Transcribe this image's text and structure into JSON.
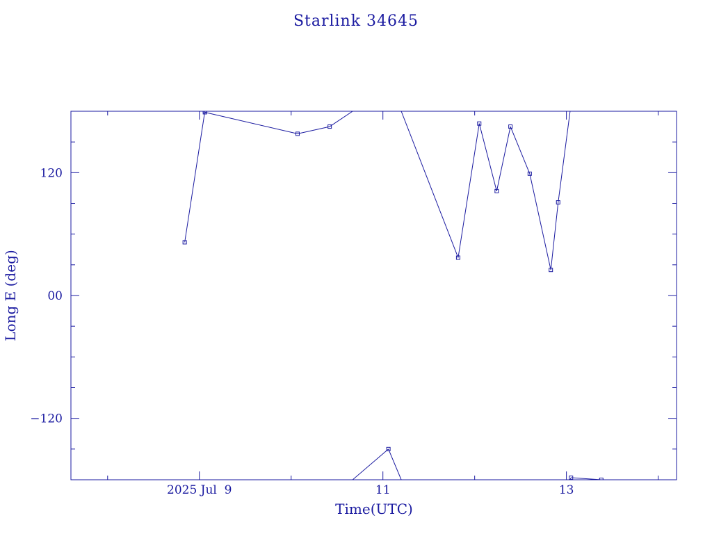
{
  "chart_data": {
    "type": "line",
    "title": "Starlink 34645",
    "xlabel": "Time(UTC)",
    "ylabel": "Long E (deg)",
    "xlim": [
      7.6,
      14.2
    ],
    "ylim": [
      -180,
      180
    ],
    "x_ticks": [
      {
        "value": 9,
        "label": "2025 Jul  9"
      },
      {
        "value": 11,
        "label": "11"
      },
      {
        "value": 13,
        "label": "13"
      }
    ],
    "y_ticks": [
      {
        "value": 120,
        "label": "120"
      },
      {
        "value": 0,
        "label": "00"
      },
      {
        "value": -120,
        "label": "-120"
      }
    ],
    "series": [
      {
        "points": [
          {
            "x": 8.84,
            "y": 52
          },
          {
            "x": 9.06,
            "y": 180
          },
          {
            "x": 9.06,
            "y": 179,
            "marker": true
          },
          {
            "x": 10.07,
            "y": 158
          },
          {
            "x": 10.42,
            "y": 165
          },
          {
            "x": 10.67,
            "y": 180,
            "marker": false
          },
          {
            "x": 10.67,
            "y": -180,
            "marker": false
          },
          {
            "x": 11.06,
            "y": -150
          },
          {
            "x": 11.2,
            "y": -180,
            "marker": false
          },
          {
            "x": 11.2,
            "y": 180,
            "marker": false
          },
          {
            "x": 11.82,
            "y": 37
          },
          {
            "x": 12.05,
            "y": 168
          },
          {
            "x": 12.24,
            "y": 102
          },
          {
            "x": 12.39,
            "y": 165
          },
          {
            "x": 12.6,
            "y": 119
          },
          {
            "x": 12.83,
            "y": 25
          },
          {
            "x": 12.91,
            "y": 91
          },
          {
            "x": 13.04,
            "y": 180,
            "marker": false
          },
          {
            "x": 13.04,
            "y": -180,
            "marker": false
          },
          {
            "x": 13.05,
            "y": -178
          },
          {
            "x": 13.38,
            "y": -180
          }
        ]
      }
    ]
  },
  "colors": {
    "foreground": "#1a1aa0",
    "background": "#ffffff"
  }
}
